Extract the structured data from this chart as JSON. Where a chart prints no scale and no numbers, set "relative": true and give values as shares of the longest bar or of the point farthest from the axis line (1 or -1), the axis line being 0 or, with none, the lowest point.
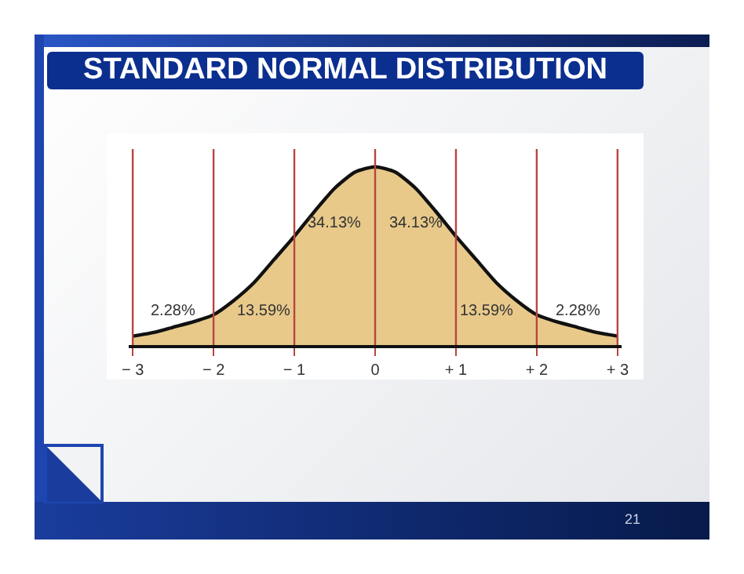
{
  "chart_data": {
    "type": "area",
    "title": "STANDARD NORMAL DISTRIBUTION",
    "relative": true,
    "x": [
      -3,
      -2.75,
      -2.5,
      -2.25,
      -2,
      -1.75,
      -1.5,
      -1.25,
      -1,
      -0.75,
      -0.5,
      -0.25,
      0,
      0.25,
      0.5,
      0.75,
      1,
      1.25,
      1.5,
      1.75,
      2,
      2.25,
      2.5,
      2.75,
      3
    ],
    "series": [
      {
        "color": "#e8c98a",
        "values": [
          0.05,
          0.07,
          0.1,
          0.13,
          0.17,
          0.25,
          0.35,
          0.48,
          0.61,
          0.75,
          0.88,
          0.97,
          1,
          0.97,
          0.88,
          0.75,
          0.61,
          0.48,
          0.35,
          0.25,
          0.17,
          0.13,
          0.1,
          0.07,
          0.05
        ]
      }
    ],
    "xlim": [
      -3.05,
      3.05
    ],
    "xticks": [
      {
        "value": -3,
        "label": "− 3"
      },
      {
        "value": -2,
        "label": "− 2"
      },
      {
        "value": -1,
        "label": "− 1"
      },
      0,
      {
        "value": 1,
        "label": "+ 1"
      },
      {
        "value": 2,
        "label": "+ 2"
      },
      {
        "value": 3,
        "label": "+ 3"
      }
    ],
    "ref_lines": [
      {
        "axis": "x",
        "value": -3,
        "color": "#b8453f"
      },
      {
        "axis": "x",
        "value": -2,
        "color": "#b8453f"
      },
      {
        "axis": "x",
        "value": -1,
        "color": "#b8453f"
      },
      {
        "axis": "x",
        "value": 0,
        "color": "#b8453f"
      },
      {
        "axis": "x",
        "value": 1,
        "color": "#b8453f"
      },
      {
        "axis": "x",
        "value": 2,
        "color": "#b8453f"
      },
      {
        "axis": "x",
        "value": 3,
        "color": "#b8453f"
      }
    ],
    "annotations": [
      "2.28%",
      "13.59%",
      "34.13%",
      "34.13%",
      "13.59%",
      "2.28%",
      "21"
    ]
  }
}
